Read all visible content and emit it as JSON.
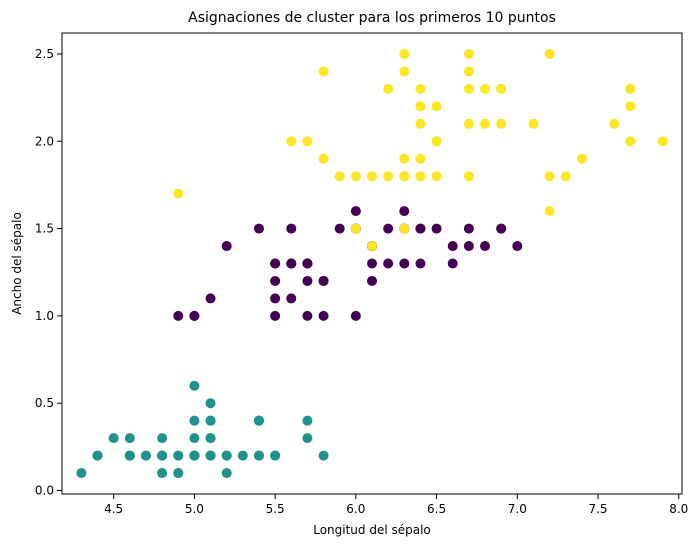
{
  "chart_data": {
    "type": "scatter",
    "title": "Asignaciones de cluster para los primeros 10 puntos",
    "xlabel": "Longitud del sépalo",
    "ylabel": "Ancho del sépalo",
    "xlim": [
      4.18,
      8.02
    ],
    "ylim": [
      -0.02,
      2.62
    ],
    "xticks": [
      "4.5",
      "5.0",
      "5.5",
      "6.0",
      "6.5",
      "7.0",
      "7.5",
      "8.0"
    ],
    "yticks": [
      "0.0",
      "0.5",
      "1.0",
      "1.5",
      "2.0",
      "2.5"
    ],
    "grid": false,
    "legend": "none",
    "colors": {
      "cluster_0": "#440154",
      "cluster_1": "#21918c",
      "cluster_2": "#fde725"
    },
    "points": {
      "cluster_1": [
        [
          5.1,
          0.2
        ],
        [
          4.9,
          0.2
        ],
        [
          4.7,
          0.2
        ],
        [
          4.6,
          0.2
        ],
        [
          5.0,
          0.2
        ],
        [
          5.4,
          0.4
        ],
        [
          4.6,
          0.3
        ],
        [
          5.0,
          0.2
        ],
        [
          4.4,
          0.2
        ],
        [
          4.9,
          0.1
        ],
        [
          5.4,
          0.2
        ],
        [
          4.8,
          0.2
        ],
        [
          4.8,
          0.1
        ],
        [
          4.3,
          0.1
        ],
        [
          5.8,
          0.2
        ],
        [
          5.7,
          0.4
        ],
        [
          5.4,
          0.4
        ],
        [
          5.1,
          0.3
        ],
        [
          5.7,
          0.3
        ],
        [
          5.1,
          0.3
        ],
        [
          5.4,
          0.2
        ],
        [
          5.1,
          0.4
        ],
        [
          4.6,
          0.2
        ],
        [
          5.1,
          0.5
        ],
        [
          4.8,
          0.2
        ],
        [
          5.0,
          0.2
        ],
        [
          5.0,
          0.4
        ],
        [
          5.2,
          0.2
        ],
        [
          5.2,
          0.2
        ],
        [
          4.7,
          0.2
        ],
        [
          4.8,
          0.2
        ],
        [
          5.4,
          0.4
        ],
        [
          5.2,
          0.1
        ],
        [
          5.5,
          0.2
        ],
        [
          4.9,
          0.2
        ],
        [
          5.0,
          0.2
        ],
        [
          5.5,
          0.2
        ],
        [
          4.9,
          0.1
        ],
        [
          4.4,
          0.2
        ],
        [
          5.1,
          0.2
        ],
        [
          5.0,
          0.3
        ],
        [
          4.5,
          0.3
        ],
        [
          4.4,
          0.2
        ],
        [
          5.0,
          0.6
        ],
        [
          5.1,
          0.4
        ],
        [
          4.8,
          0.3
        ],
        [
          5.1,
          0.2
        ],
        [
          4.6,
          0.2
        ],
        [
          5.3,
          0.2
        ],
        [
          5.0,
          0.2
        ]
      ],
      "cluster_0": [
        [
          7.0,
          1.4
        ],
        [
          6.4,
          1.5
        ],
        [
          6.9,
          1.5
        ],
        [
          5.5,
          1.3
        ],
        [
          6.5,
          1.5
        ],
        [
          5.7,
          1.3
        ],
        [
          6.3,
          1.6
        ],
        [
          4.9,
          1.0
        ],
        [
          6.6,
          1.3
        ],
        [
          5.2,
          1.4
        ],
        [
          5.0,
          1.0
        ],
        [
          5.9,
          1.5
        ],
        [
          6.0,
          1.0
        ],
        [
          6.1,
          1.4
        ],
        [
          5.6,
          1.3
        ],
        [
          6.7,
          1.4
        ],
        [
          5.6,
          1.5
        ],
        [
          5.8,
          1.0
        ],
        [
          6.2,
          1.5
        ],
        [
          5.6,
          1.1
        ],
        [
          6.1,
          1.3
        ],
        [
          6.3,
          1.5
        ],
        [
          6.1,
          1.2
        ],
        [
          6.4,
          1.3
        ],
        [
          6.6,
          1.4
        ],
        [
          6.8,
          1.4
        ],
        [
          6.0,
          1.5
        ],
        [
          5.7,
          1.0
        ],
        [
          5.5,
          1.1
        ],
        [
          5.5,
          1.0
        ],
        [
          5.8,
          1.2
        ],
        [
          5.4,
          1.5
        ],
        [
          6.0,
          1.6
        ],
        [
          6.7,
          1.5
        ],
        [
          6.3,
          1.3
        ],
        [
          5.6,
          1.3
        ],
        [
          5.5,
          1.3
        ],
        [
          5.5,
          1.2
        ],
        [
          6.1,
          1.4
        ],
        [
          5.8,
          1.2
        ],
        [
          5.0,
          1.0
        ],
        [
          5.6,
          1.3
        ],
        [
          5.7,
          1.2
        ],
        [
          5.7,
          1.3
        ],
        [
          6.2,
          1.3
        ],
        [
          5.1,
          1.1
        ],
        [
          5.7,
          1.3
        ],
        [
          6.9,
          1.5
        ],
        [
          6.3,
          1.5
        ],
        [
          6.1,
          1.4
        ],
        [
          6.0,
          1.5
        ],
        [
          6.4,
          1.5
        ]
      ],
      "cluster_2": [
        [
          6.3,
          2.5
        ],
        [
          5.8,
          1.9
        ],
        [
          7.1,
          2.1
        ],
        [
          6.3,
          1.8
        ],
        [
          6.5,
          2.2
        ],
        [
          7.6,
          2.1
        ],
        [
          4.9,
          1.7
        ],
        [
          7.3,
          1.8
        ],
        [
          6.7,
          1.8
        ],
        [
          7.2,
          2.5
        ],
        [
          6.5,
          2.0
        ],
        [
          6.4,
          1.9
        ],
        [
          6.8,
          2.1
        ],
        [
          5.7,
          2.0
        ],
        [
          5.8,
          2.4
        ],
        [
          6.4,
          2.3
        ],
        [
          6.5,
          1.8
        ],
        [
          7.7,
          2.2
        ],
        [
          7.7,
          2.3
        ],
        [
          6.0,
          1.5
        ],
        [
          6.9,
          2.3
        ],
        [
          5.6,
          2.0
        ],
        [
          7.7,
          2.0
        ],
        [
          6.3,
          1.8
        ],
        [
          6.7,
          2.1
        ],
        [
          7.2,
          1.8
        ],
        [
          6.2,
          1.8
        ],
        [
          6.1,
          1.8
        ],
        [
          6.4,
          2.1
        ],
        [
          7.2,
          1.6
        ],
        [
          7.4,
          1.9
        ],
        [
          7.9,
          2.0
        ],
        [
          6.4,
          2.2
        ],
        [
          6.3,
          1.5
        ],
        [
          6.1,
          1.4
        ],
        [
          7.7,
          2.3
        ],
        [
          6.3,
          2.4
        ],
        [
          6.4,
          1.8
        ],
        [
          6.0,
          1.8
        ],
        [
          6.9,
          2.1
        ],
        [
          6.7,
          2.4
        ],
        [
          6.9,
          2.3
        ],
        [
          5.8,
          1.9
        ],
        [
          6.8,
          2.3
        ],
        [
          6.7,
          2.5
        ],
        [
          6.7,
          2.3
        ],
        [
          6.3,
          1.9
        ],
        [
          6.5,
          2.0
        ],
        [
          6.2,
          2.3
        ],
        [
          5.9,
          1.8
        ]
      ]
    }
  }
}
